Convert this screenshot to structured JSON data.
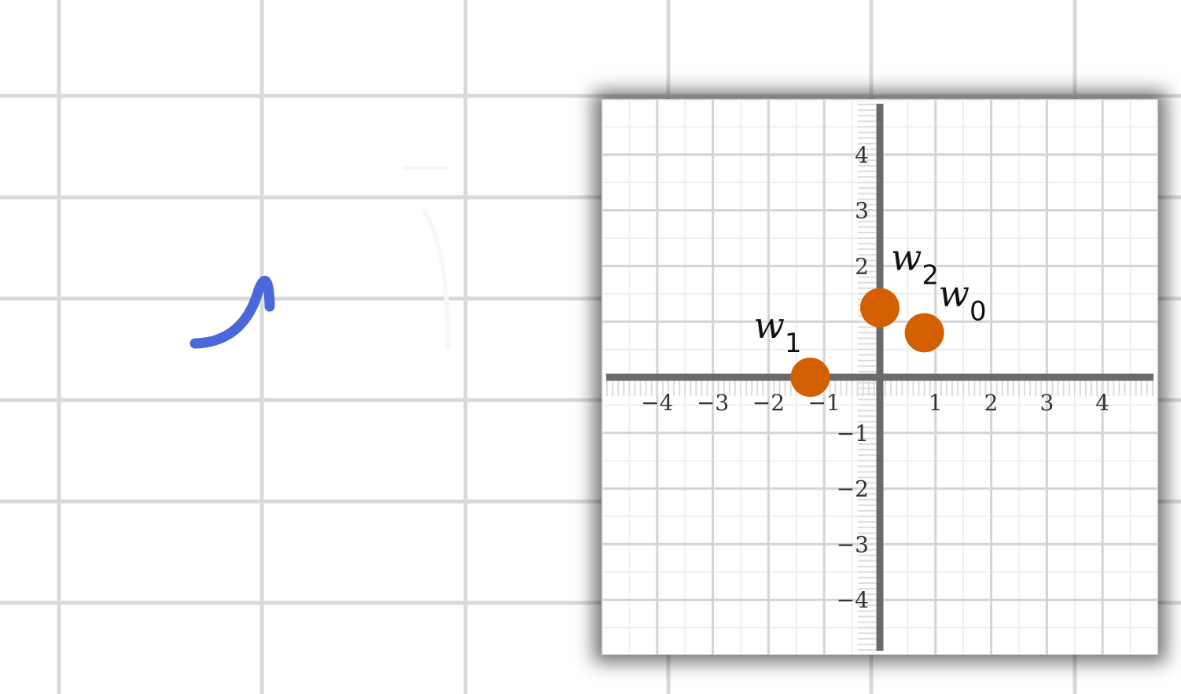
{
  "background_grid_color": "#d9d9d9",
  "ink_color": "#4a68d9",
  "point_color": "#d45f00",
  "axis_color": "#6a6a6a",
  "chart_data": {
    "type": "scatter",
    "xlim": [
      -5,
      5
    ],
    "ylim": [
      -5,
      5
    ],
    "grid": true,
    "x_ticks": [
      -4,
      -3,
      -2,
      -1,
      1,
      2,
      3,
      4
    ],
    "y_ticks": [
      4,
      3,
      2,
      -1,
      -2,
      -3,
      -4
    ],
    "x_tick_labels": [
      "−4",
      "−3",
      "−2",
      "−1",
      "1",
      "2",
      "3",
      "4"
    ],
    "y_tick_labels": [
      "4",
      "3",
      "2",
      "−1",
      "−2",
      "−3",
      "−4"
    ],
    "points": [
      {
        "x": 0.8,
        "y": 0.8,
        "label": "w",
        "subscript": "0"
      },
      {
        "x": -1.25,
        "y": 0.0,
        "label": "w",
        "subscript": "1"
      },
      {
        "x": 0.0,
        "y": 1.25,
        "label": "w",
        "subscript": "2"
      }
    ]
  }
}
